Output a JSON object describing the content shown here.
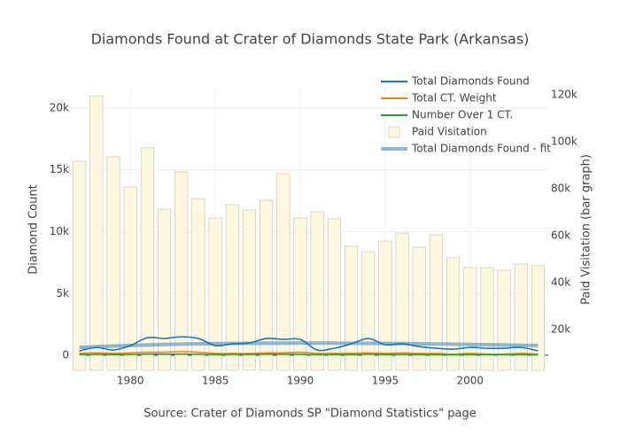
{
  "chart_data": {
    "type": "line",
    "title": "Diamonds Found at Crater of Diamonds State Park (Arkansas)",
    "x_label": "Source: Crater of Diamonds SP \"Diamond Statistics\" page",
    "y_label": "Diamond Count",
    "y2_label": "Paid Visitation (bar graph)",
    "x": [
      1977,
      1978,
      1979,
      1980,
      1981,
      1982,
      1983,
      1984,
      1985,
      1986,
      1987,
      1988,
      1989,
      1990,
      1991,
      1992,
      1993,
      1994,
      1995,
      1996,
      1997,
      1998,
      1999,
      2000,
      2001,
      2002,
      2003,
      2004
    ],
    "series": [
      {
        "name": "Total Diamonds Found",
        "color": "#1f77b4",
        "type": "line",
        "values": [
          360,
          640,
          430,
          790,
          1430,
          1360,
          1500,
          1360,
          790,
          930,
          1000,
          1360,
          1290,
          1290,
          430,
          570,
          930,
          1360,
          860,
          930,
          710,
          570,
          500,
          640,
          570,
          570,
          640,
          360
        ]
      },
      {
        "name": "Total CT. Weight",
        "color": "#ff7f0e",
        "type": "line",
        "values": [
          150,
          200,
          150,
          200,
          250,
          250,
          300,
          250,
          150,
          150,
          150,
          200,
          200,
          250,
          150,
          150,
          150,
          200,
          150,
          200,
          150,
          150,
          100,
          150,
          100,
          100,
          150,
          100
        ]
      },
      {
        "name": "Number Over 1 CT.",
        "color": "#2ca02c",
        "type": "line",
        "values": [
          50,
          80,
          60,
          70,
          100,
          90,
          100,
          90,
          60,
          70,
          70,
          90,
          80,
          80,
          50,
          60,
          60,
          90,
          60,
          70,
          60,
          50,
          40,
          60,
          50,
          50,
          60,
          40
        ]
      },
      {
        "name": "Paid Visitation",
        "color": "#fff8e1",
        "type": "bar",
        "axis": "y2",
        "values": [
          91700,
          119600,
          93600,
          80750,
          97400,
          71300,
          87200,
          75800,
          67500,
          73200,
          70900,
          75100,
          86400,
          67500,
          70200,
          67200,
          55500,
          53200,
          57700,
          61100,
          55100,
          60400,
          50600,
          46400,
          46400,
          45300,
          47900,
          47200
        ]
      },
      {
        "name": "Total Diamonds Found - fit",
        "color": "#1f77b4",
        "type": "fit",
        "values": [
          640,
          700,
          760,
          800,
          840,
          880,
          910,
          930,
          950,
          960,
          970,
          980,
          985,
          990,
          990,
          985,
          980,
          970,
          960,
          950,
          935,
          920,
          900,
          880,
          860,
          840,
          820,
          800
        ]
      }
    ],
    "xlim": [
      1976.6,
      2004.6
    ],
    "xticks": [
      1980,
      1985,
      1990,
      1995,
      2000
    ],
    "ylim": [
      -1214,
      21570
    ],
    "yticks": [
      {
        "value": 0,
        "label": "0"
      },
      {
        "value": 5000,
        "label": "5k"
      },
      {
        "value": 10000,
        "label": "10k"
      },
      {
        "value": 15000,
        "label": "15k"
      },
      {
        "value": 20000,
        "label": "20k"
      }
    ],
    "y2lim": [
      2640,
      122640
    ],
    "y2ticks": [
      {
        "value": 20000,
        "label": "20k"
      },
      {
        "value": 40000,
        "label": "40k"
      },
      {
        "value": 60000,
        "label": "60k"
      },
      {
        "value": 80000,
        "label": "80k"
      },
      {
        "value": 100000,
        "label": "100k"
      },
      {
        "value": 120000,
        "label": "120k"
      }
    ],
    "grid": true,
    "legend": "top-right"
  }
}
